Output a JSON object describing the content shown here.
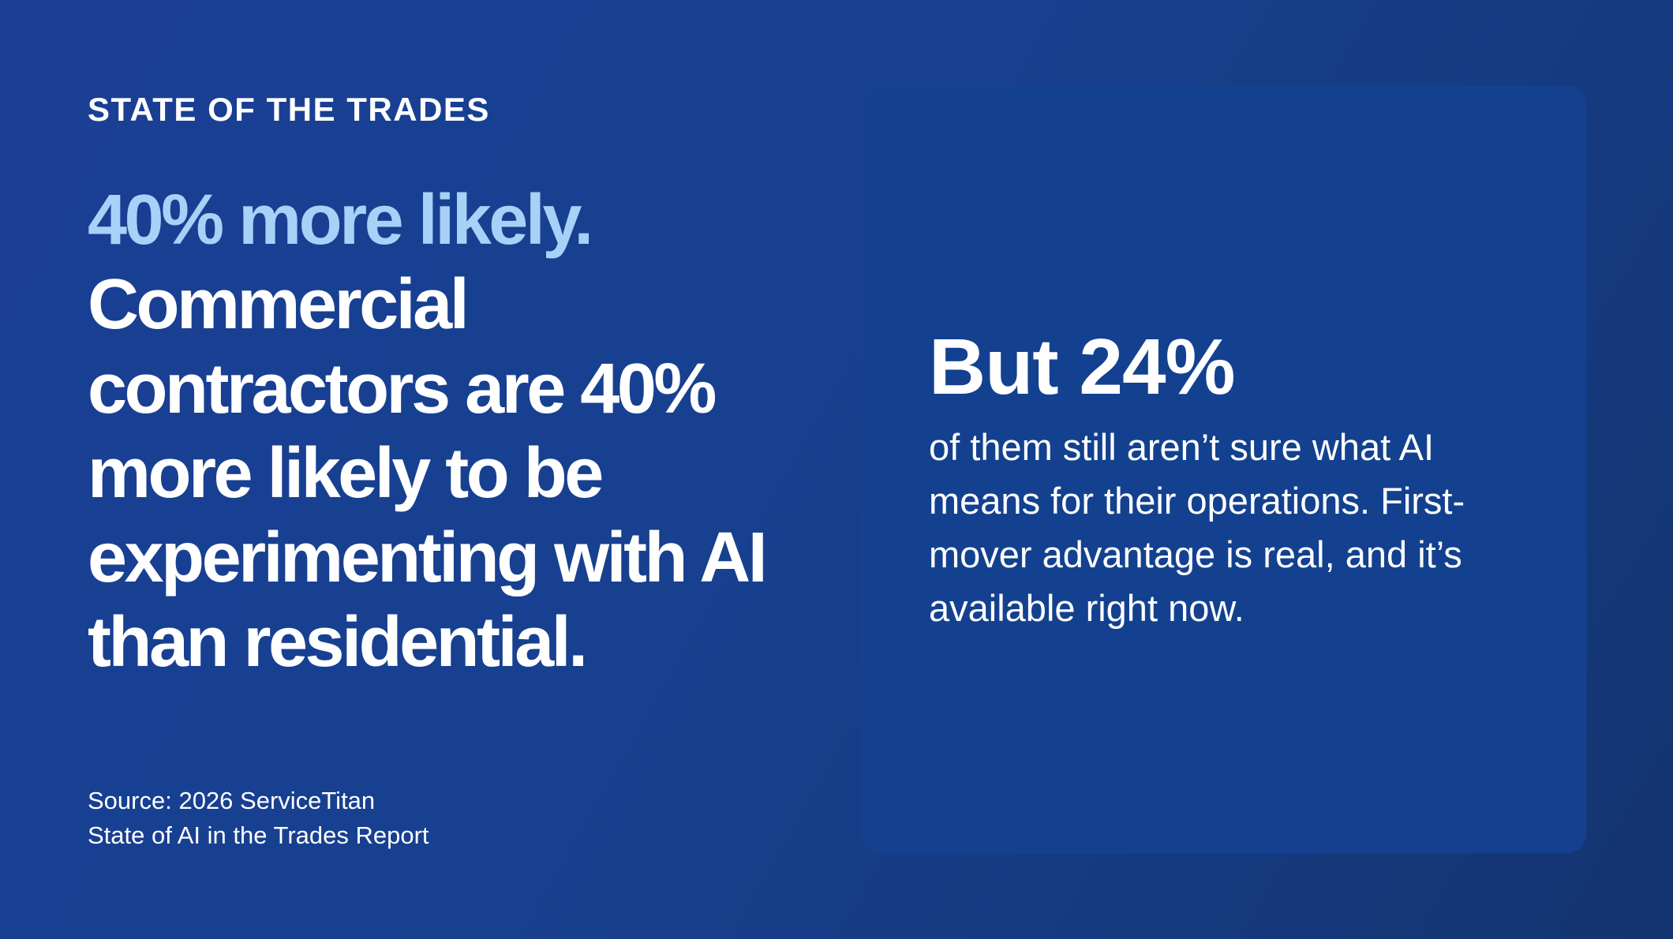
{
  "eyebrow": "STATE OF THE TRADES",
  "headline": {
    "accent": "40% more likely.",
    "statement": "Commercial contractors are 40% more likely to be experimenting with AI than residential."
  },
  "source": {
    "line1": "Source: 2026 ServiceTitan",
    "line2": "State of AI in the Trades Report"
  },
  "panel": {
    "stat": "But 24%",
    "body": "of them still aren’t sure what AI means for their operations. First-mover advantage is real, and it’s available right now."
  },
  "colors": {
    "background": "#17408f",
    "panel": "#13418f",
    "accent": "#a7d1f7",
    "text": "#ffffff"
  }
}
